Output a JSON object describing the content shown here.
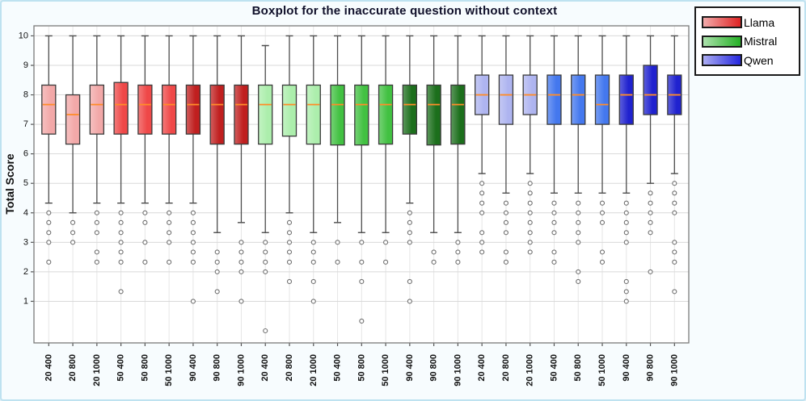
{
  "page": {
    "title": "Boxplot for the inaccurate question without context"
  },
  "y_axis": {
    "label": "Total Score"
  },
  "legend": {
    "items": [
      {
        "label": "Llama"
      },
      {
        "label": "Mistral"
      },
      {
        "label": "Qwen"
      }
    ]
  },
  "colors": {
    "page_bg": "#f7fcfe",
    "page_border": "#bee2f0",
    "plot_bg": "#ffffff",
    "axis": "#7a7a7a",
    "grid_h": "#d9d9d9",
    "grid_v": "#e6e6e6",
    "tick": "#555555",
    "whisker": "#4d4d4d",
    "box_edge": "#3a3a3a",
    "median": "#ff8c28",
    "outlier": "#6e6e6e",
    "tick_text": "#111111",
    "title_text": "#10102a"
  },
  "chart_data": {
    "type": "boxplot",
    "title": "Boxplot for the inaccurate question without context",
    "xlabel": "",
    "ylabel": "Total Score",
    "ylim": [
      -0.41,
      10.34
    ],
    "yticks": [
      1,
      2,
      3,
      4,
      5,
      6,
      7,
      8,
      9,
      10
    ],
    "x_tick_rotation": 90,
    "grid": true,
    "legend_position": "top-right-outside",
    "groups": {
      "Llama": {
        "shades": {
          "light": "#f2a8a8",
          "medium": "#ef4848",
          "dark": "#c01f1f"
        },
        "legend_color": "#de2323"
      },
      "Mistral": {
        "shades": {
          "light": "#aceeac",
          "medium": "#42c142",
          "dark": "#1c6f1c"
        },
        "legend_color": "#25b025"
      },
      "Qwen": {
        "shades": {
          "light": "#aeb4f0",
          "medium": "#4478ee",
          "dark": "#2022cf"
        },
        "legend_color": "#2527de"
      }
    },
    "boxes": [
      {
        "label": "20 400",
        "group": "Llama",
        "shade": "light",
        "whislo": 4.33,
        "q1": 6.67,
        "med": 7.67,
        "q3": 8.33,
        "whishi": 10.0,
        "outliers": [
          4.0,
          3.67,
          3.33,
          3.0,
          2.33
        ]
      },
      {
        "label": "20 800",
        "group": "Llama",
        "shade": "light",
        "whislo": 4.0,
        "q1": 6.33,
        "med": 7.33,
        "q3": 8.0,
        "whishi": 10.0,
        "outliers": [
          3.67,
          3.33,
          3.0
        ]
      },
      {
        "label": "20 1000",
        "group": "Llama",
        "shade": "light",
        "whislo": 4.33,
        "q1": 6.67,
        "med": 7.67,
        "q3": 8.33,
        "whishi": 10.0,
        "outliers": [
          4.0,
          3.67,
          3.33,
          2.67,
          2.33
        ]
      },
      {
        "label": "50 400",
        "group": "Llama",
        "shade": "medium",
        "whislo": 4.33,
        "q1": 6.67,
        "med": 7.67,
        "q3": 8.42,
        "whishi": 10.0,
        "outliers": [
          4.0,
          3.67,
          3.33,
          3.0,
          2.67,
          2.33,
          1.33
        ]
      },
      {
        "label": "50 800",
        "group": "Llama",
        "shade": "medium",
        "whislo": 4.33,
        "q1": 6.67,
        "med": 7.67,
        "q3": 8.33,
        "whishi": 10.0,
        "outliers": [
          4.0,
          3.67,
          3.0,
          2.33
        ]
      },
      {
        "label": "50 1000",
        "group": "Llama",
        "shade": "medium",
        "whislo": 4.33,
        "q1": 6.67,
        "med": 7.67,
        "q3": 8.33,
        "whishi": 10.0,
        "outliers": [
          4.0,
          3.67,
          3.33,
          3.0,
          2.33
        ]
      },
      {
        "label": "90 400",
        "group": "Llama",
        "shade": "dark",
        "whislo": 4.33,
        "q1": 6.67,
        "med": 7.67,
        "q3": 8.33,
        "whishi": 10.0,
        "outliers": [
          4.0,
          3.67,
          3.33,
          3.0,
          2.67,
          2.33,
          1.0
        ]
      },
      {
        "label": "90 800",
        "group": "Llama",
        "shade": "dark",
        "whislo": 3.33,
        "q1": 6.33,
        "med": 7.67,
        "q3": 8.33,
        "whishi": 10.0,
        "outliers": [
          2.67,
          2.33,
          2.0,
          1.33
        ]
      },
      {
        "label": "90 1000",
        "group": "Llama",
        "shade": "dark",
        "whislo": 3.67,
        "q1": 6.33,
        "med": 7.67,
        "q3": 8.33,
        "whishi": 10.0,
        "outliers": [
          3.0,
          2.67,
          2.33,
          2.0,
          1.0
        ]
      },
      {
        "label": "20 400",
        "group": "Mistral",
        "shade": "light",
        "whislo": 3.33,
        "q1": 6.33,
        "med": 7.67,
        "q3": 8.33,
        "whishi": 9.67,
        "outliers": [
          3.0,
          2.67,
          2.33,
          2.0,
          0.0
        ]
      },
      {
        "label": "20 800",
        "group": "Mistral",
        "shade": "light",
        "whislo": 4.0,
        "q1": 6.6,
        "med": 7.67,
        "q3": 8.33,
        "whishi": 10.0,
        "outliers": [
          3.67,
          3.33,
          3.0,
          2.67,
          2.33,
          1.67
        ]
      },
      {
        "label": "20 1000",
        "group": "Mistral",
        "shade": "light",
        "whislo": 3.33,
        "q1": 6.33,
        "med": 7.67,
        "q3": 8.33,
        "whishi": 10.0,
        "outliers": [
          3.0,
          2.67,
          2.33,
          1.67,
          1.0
        ]
      },
      {
        "label": "50 400",
        "group": "Mistral",
        "shade": "medium",
        "whislo": 3.67,
        "q1": 6.3,
        "med": 7.67,
        "q3": 8.33,
        "whishi": 10.0,
        "outliers": [
          3.0,
          2.33
        ]
      },
      {
        "label": "50 800",
        "group": "Mistral",
        "shade": "medium",
        "whislo": 3.33,
        "q1": 6.3,
        "med": 7.67,
        "q3": 8.33,
        "whishi": 10.0,
        "outliers": [
          3.0,
          2.33,
          1.67,
          0.33
        ]
      },
      {
        "label": "50 1000",
        "group": "Mistral",
        "shade": "medium",
        "whislo": 3.33,
        "q1": 6.33,
        "med": 7.67,
        "q3": 8.33,
        "whishi": 10.0,
        "outliers": [
          3.0,
          2.33
        ]
      },
      {
        "label": "90 400",
        "group": "Mistral",
        "shade": "dark",
        "whislo": 4.33,
        "q1": 6.67,
        "med": 7.67,
        "q3": 8.33,
        "whishi": 10.0,
        "outliers": [
          4.0,
          3.67,
          3.33,
          3.0,
          1.67,
          1.0
        ]
      },
      {
        "label": "90 800",
        "group": "Mistral",
        "shade": "dark",
        "whislo": 3.33,
        "q1": 6.3,
        "med": 7.67,
        "q3": 8.33,
        "whishi": 10.0,
        "outliers": [
          2.67,
          2.33
        ]
      },
      {
        "label": "90 1000",
        "group": "Mistral",
        "shade": "dark",
        "whislo": 3.33,
        "q1": 6.33,
        "med": 7.67,
        "q3": 8.33,
        "whishi": 10.0,
        "outliers": [
          3.0,
          2.67,
          2.33
        ]
      },
      {
        "label": "20 400",
        "group": "Qwen",
        "shade": "light",
        "whislo": 5.33,
        "q1": 7.33,
        "med": 8.0,
        "q3": 8.67,
        "whishi": 10.0,
        "outliers": [
          5.0,
          4.67,
          4.33,
          4.0,
          3.33,
          3.0,
          2.67
        ]
      },
      {
        "label": "20 800",
        "group": "Qwen",
        "shade": "light",
        "whislo": 4.67,
        "q1": 7.0,
        "med": 8.0,
        "q3": 8.67,
        "whishi": 10.0,
        "outliers": [
          4.33,
          4.0,
          3.67,
          3.33,
          2.67,
          2.33
        ]
      },
      {
        "label": "20 1000",
        "group": "Qwen",
        "shade": "light",
        "whislo": 5.33,
        "q1": 7.33,
        "med": 8.0,
        "q3": 8.67,
        "whishi": 10.0,
        "outliers": [
          5.0,
          4.67,
          4.33,
          4.0,
          3.67,
          3.33,
          3.0,
          2.67
        ]
      },
      {
        "label": "50 400",
        "group": "Qwen",
        "shade": "medium",
        "whislo": 4.67,
        "q1": 7.0,
        "med": 8.0,
        "q3": 8.67,
        "whishi": 10.0,
        "outliers": [
          4.33,
          4.0,
          3.67,
          3.33,
          2.67,
          2.33
        ]
      },
      {
        "label": "50 800",
        "group": "Qwen",
        "shade": "medium",
        "whislo": 4.67,
        "q1": 7.0,
        "med": 8.0,
        "q3": 8.67,
        "whishi": 10.0,
        "outliers": [
          4.33,
          4.0,
          3.67,
          3.33,
          3.0,
          2.0,
          1.67
        ]
      },
      {
        "label": "50 1000",
        "group": "Qwen",
        "shade": "medium",
        "whislo": 4.67,
        "q1": 7.0,
        "med": 7.67,
        "q3": 8.67,
        "whishi": 10.0,
        "outliers": [
          4.33,
          4.0,
          3.67,
          2.67,
          2.33
        ]
      },
      {
        "label": "90 400",
        "group": "Qwen",
        "shade": "dark",
        "whislo": 4.67,
        "q1": 7.0,
        "med": 8.0,
        "q3": 8.67,
        "whishi": 10.0,
        "outliers": [
          4.33,
          4.0,
          3.67,
          3.33,
          3.0,
          1.67,
          1.33,
          1.0
        ]
      },
      {
        "label": "90 800",
        "group": "Qwen",
        "shade": "dark",
        "whislo": 5.0,
        "q1": 7.33,
        "med": 8.0,
        "q3": 9.0,
        "whishi": 10.0,
        "outliers": [
          4.67,
          4.33,
          4.0,
          3.67,
          3.33,
          2.0
        ]
      },
      {
        "label": "90 1000",
        "group": "Qwen",
        "shade": "dark",
        "whislo": 5.33,
        "q1": 7.33,
        "med": 8.0,
        "q3": 8.67,
        "whishi": 10.0,
        "outliers": [
          5.0,
          4.67,
          4.33,
          4.0,
          3.0,
          2.67,
          2.33,
          1.33
        ]
      }
    ]
  }
}
